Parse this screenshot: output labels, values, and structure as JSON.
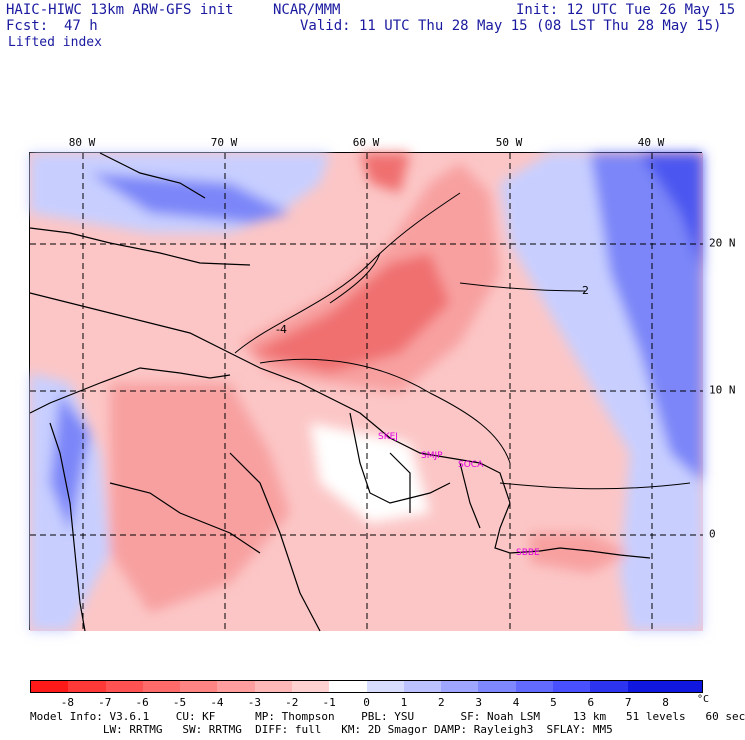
{
  "header": {
    "model": "HAIC-HIWC 13km ARW-GFS init",
    "org": "NCAR/MMM",
    "fcst_label": "Fcst:",
    "fcst_value": "47 h",
    "field": "Lifted index",
    "init": "Init: 12 UTC Tue 26 May 15",
    "valid": "Valid: 11 UTC Thu 28 May 15 (08 LST Thu 28 May 15)"
  },
  "axes": {
    "lon_labels": [
      "80 W",
      "70 W",
      "60 W",
      "50 W",
      "40 W"
    ],
    "lat_labels": [
      "20 N",
      "10 N",
      "0"
    ]
  },
  "stations": [
    "SKEJ",
    "SMJP",
    "SOCA",
    "SBBE"
  ],
  "contour_labels": [
    "-4",
    "-2"
  ],
  "colorbar": {
    "labels": [
      "-8",
      "-7",
      "-6",
      "-5",
      "-4",
      "-3",
      "-2",
      "-1",
      "0",
      "1",
      "2",
      "3",
      "4",
      "5",
      "6",
      "7",
      "8"
    ],
    "unit": "°C",
    "colors": [
      "#ff1a1a",
      "#ff3838",
      "#ff5252",
      "#ff6a6a",
      "#ff8484",
      "#ff9e9e",
      "#ffb8b8",
      "#ffd2d2",
      "#ffffff",
      "#d8dcff",
      "#bcc2ff",
      "#9ea6ff",
      "#8088ff",
      "#626aff",
      "#4850ff",
      "#2c34f0",
      "#1018e0"
    ]
  },
  "footer": {
    "line1": "Model Info: V3.6.1    CU: KF      MP: Thompson    PBL: YSU       SF: Noah LSM     13 km   51 levels   60 sec",
    "line2": "           LW: RRTMG   SW: RRTMG  DIFF: full   KM: 2D Smagor DAMP: Rayleigh3  SFLAY: MM5"
  },
  "map_colors": {
    "neg4": "#f07070",
    "neg2": "#f8a0a0",
    "neg1": "#fcc6c6",
    "pos1": "#c8cfff",
    "pos4": "#7c86f8",
    "pos8": "#4c56f0"
  }
}
